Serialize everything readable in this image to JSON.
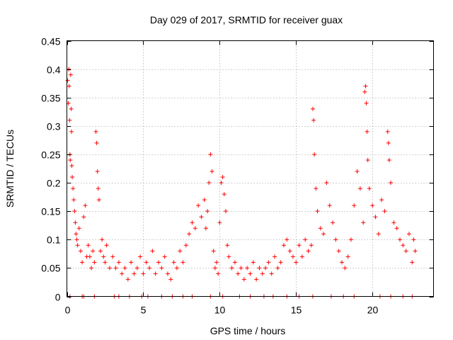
{
  "chart_data": {
    "type": "scatter",
    "title": "Day 029 of 2017, SRMTID for receiver guax",
    "xlabel": "GPS time / hours",
    "ylabel": "SRMTID / TECUs",
    "xlim": [
      0,
      24
    ],
    "ylim": [
      0,
      0.45
    ],
    "xticks": [
      0,
      5,
      10,
      15,
      20
    ],
    "yticks": [
      0,
      0.05,
      0.1,
      0.15,
      0.2,
      0.25,
      0.3,
      0.35,
      0.4,
      0.45
    ],
    "grid": true,
    "marker": "+",
    "color": "#ff0000",
    "series": [
      {
        "name": "SRMTID",
        "points": [
          [
            0.05,
            0.38
          ],
          [
            0.1,
            0.34
          ],
          [
            0.12,
            0.4
          ],
          [
            0.15,
            0.37
          ],
          [
            0.18,
            0.31
          ],
          [
            0.2,
            0.25
          ],
          [
            0.22,
            0.24
          ],
          [
            0.25,
            0.39
          ],
          [
            0.28,
            0.33
          ],
          [
            0.3,
            0.29
          ],
          [
            0.32,
            0.23
          ],
          [
            0.35,
            0.21
          ],
          [
            0.4,
            0.19
          ],
          [
            0.45,
            0.17
          ],
          [
            0.5,
            0.15
          ],
          [
            0.55,
            0.13
          ],
          [
            0.6,
            0.11
          ],
          [
            0.65,
            0.1
          ],
          [
            0.7,
            0.09
          ],
          [
            0.8,
            0.12
          ],
          [
            0.9,
            0.08
          ],
          [
            1.0,
            0.06
          ],
          [
            1.1,
            0.14
          ],
          [
            1.2,
            0.16
          ],
          [
            1.3,
            0.07
          ],
          [
            1.4,
            0.09
          ],
          [
            1.5,
            0.07
          ],
          [
            1.6,
            0.05
          ],
          [
            1.7,
            0.08
          ],
          [
            1.8,
            0.06
          ],
          [
            1.9,
            0.29
          ],
          [
            1.95,
            0.27
          ],
          [
            2.0,
            0.22
          ],
          [
            2.05,
            0.19
          ],
          [
            2.1,
            0.17
          ],
          [
            2.2,
            0.08
          ],
          [
            2.3,
            0.1
          ],
          [
            2.4,
            0.07
          ],
          [
            2.5,
            0.06
          ],
          [
            2.6,
            0.09
          ],
          [
            2.8,
            0.05
          ],
          [
            3.0,
            0.07
          ],
          [
            3.2,
            0.05
          ],
          [
            3.4,
            0.06
          ],
          [
            3.6,
            0.04
          ],
          [
            3.8,
            0.05
          ],
          [
            4.0,
            0.03
          ],
          [
            4.2,
            0.06
          ],
          [
            4.4,
            0.04
          ],
          [
            4.6,
            0.05
          ],
          [
            4.8,
            0.07
          ],
          [
            5.0,
            0.04
          ],
          [
            5.2,
            0.06
          ],
          [
            5.4,
            0.05
          ],
          [
            5.6,
            0.08
          ],
          [
            5.8,
            0.04
          ],
          [
            6.0,
            0.06
          ],
          [
            6.2,
            0.05
          ],
          [
            6.4,
            0.07
          ],
          [
            6.6,
            0.04
          ],
          [
            6.8,
            0.03
          ],
          [
            7.0,
            0.06
          ],
          [
            7.2,
            0.05
          ],
          [
            7.4,
            0.08
          ],
          [
            7.6,
            0.06
          ],
          [
            7.8,
            0.09
          ],
          [
            8.0,
            0.11
          ],
          [
            8.2,
            0.13
          ],
          [
            8.4,
            0.12
          ],
          [
            8.6,
            0.16
          ],
          [
            8.8,
            0.14
          ],
          [
            9.0,
            0.17
          ],
          [
            9.1,
            0.12
          ],
          [
            9.2,
            0.15
          ],
          [
            9.3,
            0.2
          ],
          [
            9.4,
            0.25
          ],
          [
            9.5,
            0.22
          ],
          [
            9.6,
            0.08
          ],
          [
            9.7,
            0.05
          ],
          [
            9.8,
            0.06
          ],
          [
            9.9,
            0.04
          ],
          [
            10.0,
            0.13
          ],
          [
            10.1,
            0.2
          ],
          [
            10.2,
            0.21
          ],
          [
            10.3,
            0.18
          ],
          [
            10.4,
            0.15
          ],
          [
            10.5,
            0.09
          ],
          [
            10.6,
            0.07
          ],
          [
            10.8,
            0.05
          ],
          [
            11.0,
            0.06
          ],
          [
            11.2,
            0.04
          ],
          [
            11.4,
            0.05
          ],
          [
            11.6,
            0.03
          ],
          [
            11.8,
            0.05
          ],
          [
            12.0,
            0.04
          ],
          [
            12.2,
            0.06
          ],
          [
            12.4,
            0.03
          ],
          [
            12.6,
            0.05
          ],
          [
            12.8,
            0.04
          ],
          [
            13.0,
            0.05
          ],
          [
            13.2,
            0.06
          ],
          [
            13.4,
            0.04
          ],
          [
            13.6,
            0.07
          ],
          [
            13.8,
            0.05
          ],
          [
            14.0,
            0.06
          ],
          [
            14.2,
            0.09
          ],
          [
            14.4,
            0.1
          ],
          [
            14.6,
            0.08
          ],
          [
            14.8,
            0.07
          ],
          [
            15.0,
            0.06
          ],
          [
            15.2,
            0.09
          ],
          [
            15.4,
            0.07
          ],
          [
            15.6,
            0.1
          ],
          [
            15.8,
            0.08
          ],
          [
            16.0,
            0.09
          ],
          [
            16.1,
            0.33
          ],
          [
            16.15,
            0.31
          ],
          [
            16.2,
            0.25
          ],
          [
            16.3,
            0.19
          ],
          [
            16.4,
            0.15
          ],
          [
            16.6,
            0.12
          ],
          [
            16.8,
            0.11
          ],
          [
            17.0,
            0.2
          ],
          [
            17.2,
            0.16
          ],
          [
            17.4,
            0.13
          ],
          [
            17.6,
            0.1
          ],
          [
            17.8,
            0.08
          ],
          [
            18.0,
            0.06
          ],
          [
            18.2,
            0.05
          ],
          [
            18.4,
            0.07
          ],
          [
            18.6,
            0.1
          ],
          [
            18.8,
            0.16
          ],
          [
            19.0,
            0.22
          ],
          [
            19.2,
            0.19
          ],
          [
            19.4,
            0.13
          ],
          [
            19.5,
            0.36
          ],
          [
            19.55,
            0.37
          ],
          [
            19.6,
            0.34
          ],
          [
            19.65,
            0.29
          ],
          [
            19.7,
            0.24
          ],
          [
            19.8,
            0.19
          ],
          [
            20.0,
            0.16
          ],
          [
            20.2,
            0.14
          ],
          [
            20.4,
            0.11
          ],
          [
            20.6,
            0.17
          ],
          [
            20.8,
            0.15
          ],
          [
            21.0,
            0.29
          ],
          [
            21.05,
            0.27
          ],
          [
            21.1,
            0.24
          ],
          [
            21.2,
            0.2
          ],
          [
            21.4,
            0.13
          ],
          [
            21.6,
            0.12
          ],
          [
            21.8,
            0.1
          ],
          [
            22.0,
            0.09
          ],
          [
            22.2,
            0.08
          ],
          [
            22.4,
            0.11
          ],
          [
            22.6,
            0.06
          ],
          [
            22.7,
            0.1
          ],
          [
            22.8,
            0.08
          ]
        ],
        "zero_points": [
          0.2,
          1.0,
          1.1,
          1.8,
          3.1,
          3.4,
          4.1,
          4.9,
          5.3,
          6.2,
          6.9,
          7.6,
          8.2,
          9.4,
          10.2,
          11.3,
          12.0,
          12.9,
          13.5,
          14.4,
          15.2,
          16.1,
          17.3,
          18.1,
          18.8,
          20.5,
          21.2,
          22.0,
          22.6
        ]
      }
    ]
  }
}
